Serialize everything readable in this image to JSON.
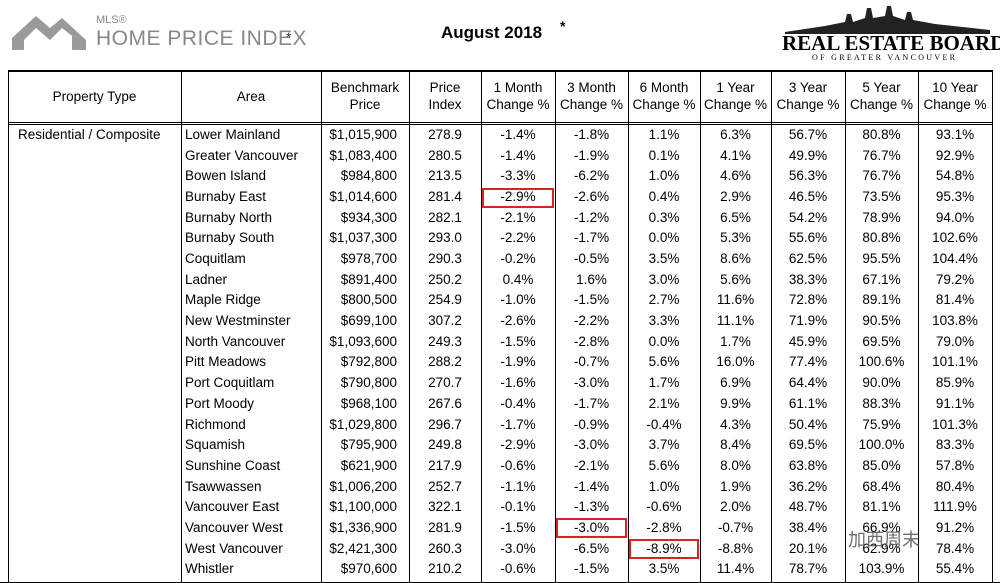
{
  "header": {
    "logo_sup": "MLS®",
    "logo_title": "HOME PRICE INDEX",
    "logo_star": "*",
    "title": "August 2018",
    "title_star": "*",
    "board_name": "REAL ESTATE BOARD",
    "board_sub": "OF GREATER VANCOUVER"
  },
  "table": {
    "headers": [
      [
        "Property Type"
      ],
      [
        "Area"
      ],
      [
        "Benchmark",
        "Price"
      ],
      [
        "Price",
        "Index"
      ],
      [
        "1 Month",
        "Change %"
      ],
      [
        "3 Month",
        "Change %"
      ],
      [
        "6 Month",
        "Change %"
      ],
      [
        "1 Year",
        "Change %"
      ],
      [
        "3 Year",
        "Change %"
      ],
      [
        "5 Year",
        "Change %"
      ],
      [
        "10 Year",
        "Change %"
      ]
    ],
    "property_type": "Residential / Composite",
    "rows": [
      [
        "Lower Mainland",
        "$1,015,900",
        "278.9",
        "-1.4%",
        "-1.8%",
        "1.1%",
        "6.3%",
        "56.7%",
        "80.8%",
        "93.1%"
      ],
      [
        "Greater Vancouver",
        "$1,083,400",
        "280.5",
        "-1.4%",
        "-1.9%",
        "0.1%",
        "4.1%",
        "49.9%",
        "76.7%",
        "92.9%"
      ],
      [
        "Bowen Island",
        "$984,800",
        "213.5",
        "-3.3%",
        "-6.2%",
        "1.0%",
        "4.6%",
        "56.3%",
        "76.7%",
        "54.8%"
      ],
      [
        "Burnaby East",
        "$1,014,600",
        "281.4",
        "-2.9%",
        "-2.6%",
        "0.4%",
        "2.9%",
        "46.5%",
        "73.5%",
        "95.3%"
      ],
      [
        "Burnaby North",
        "$934,300",
        "282.1",
        "-2.1%",
        "-1.2%",
        "0.3%",
        "6.5%",
        "54.2%",
        "78.9%",
        "94.0%"
      ],
      [
        "Burnaby South",
        "$1,037,300",
        "293.0",
        "-2.2%",
        "-1.7%",
        "0.0%",
        "5.3%",
        "55.6%",
        "80.8%",
        "102.6%"
      ],
      [
        "Coquitlam",
        "$978,700",
        "290.3",
        "-0.2%",
        "-0.5%",
        "3.5%",
        "8.6%",
        "62.5%",
        "95.5%",
        "104.4%"
      ],
      [
        "Ladner",
        "$891,400",
        "250.2",
        "0.4%",
        "1.6%",
        "3.0%",
        "5.6%",
        "38.3%",
        "67.1%",
        "79.2%"
      ],
      [
        "Maple Ridge",
        "$800,500",
        "254.9",
        "-1.0%",
        "-1.5%",
        "2.7%",
        "11.6%",
        "72.8%",
        "89.1%",
        "81.4%"
      ],
      [
        "New Westminster",
        "$699,100",
        "307.2",
        "-2.6%",
        "-2.2%",
        "3.3%",
        "11.1%",
        "71.9%",
        "90.5%",
        "103.8%"
      ],
      [
        "North Vancouver",
        "$1,093,600",
        "249.3",
        "-1.5%",
        "-2.8%",
        "0.0%",
        "1.7%",
        "45.9%",
        "69.5%",
        "79.0%"
      ],
      [
        "Pitt Meadows",
        "$792,800",
        "288.2",
        "-1.9%",
        "-0.7%",
        "5.6%",
        "16.0%",
        "77.4%",
        "100.6%",
        "101.1%"
      ],
      [
        "Port Coquitlam",
        "$790,800",
        "270.7",
        "-1.6%",
        "-3.0%",
        "1.7%",
        "6.9%",
        "64.4%",
        "90.0%",
        "85.9%"
      ],
      [
        "Port Moody",
        "$968,100",
        "267.6",
        "-0.4%",
        "-1.7%",
        "2.1%",
        "9.9%",
        "61.1%",
        "88.3%",
        "91.1%"
      ],
      [
        "Richmond",
        "$1,029,800",
        "296.7",
        "-1.7%",
        "-0.9%",
        "-0.4%",
        "4.3%",
        "50.4%",
        "75.9%",
        "101.3%"
      ],
      [
        "Squamish",
        "$795,900",
        "249.8",
        "-2.9%",
        "-3.0%",
        "3.7%",
        "8.4%",
        "69.5%",
        "100.0%",
        "83.3%"
      ],
      [
        "Sunshine Coast",
        "$621,900",
        "217.9",
        "-0.6%",
        "-2.1%",
        "5.6%",
        "8.0%",
        "63.8%",
        "85.0%",
        "57.8%"
      ],
      [
        "Tsawwassen",
        "$1,006,200",
        "252.7",
        "-1.1%",
        "-1.4%",
        "1.0%",
        "1.9%",
        "36.2%",
        "68.4%",
        "80.4%"
      ],
      [
        "Vancouver East",
        "$1,100,000",
        "322.1",
        "-0.1%",
        "-1.3%",
        "-0.6%",
        "2.0%",
        "48.7%",
        "81.1%",
        "111.9%"
      ],
      [
        "Vancouver West",
        "$1,336,900",
        "281.9",
        "-1.5%",
        "-3.0%",
        "-2.8%",
        "-0.7%",
        "38.4%",
        "66.9%",
        "91.2%"
      ],
      [
        "West Vancouver",
        "$2,421,300",
        "260.3",
        "-3.0%",
        "-6.5%",
        "-8.9%",
        "-8.8%",
        "20.1%",
        "62.9%",
        "78.4%"
      ],
      [
        "Whistler",
        "$970,600",
        "210.2",
        "-0.6%",
        "-1.5%",
        "3.5%",
        "11.4%",
        "78.7%",
        "103.9%",
        "55.4%"
      ]
    ]
  },
  "watermark": "加西周末"
}
